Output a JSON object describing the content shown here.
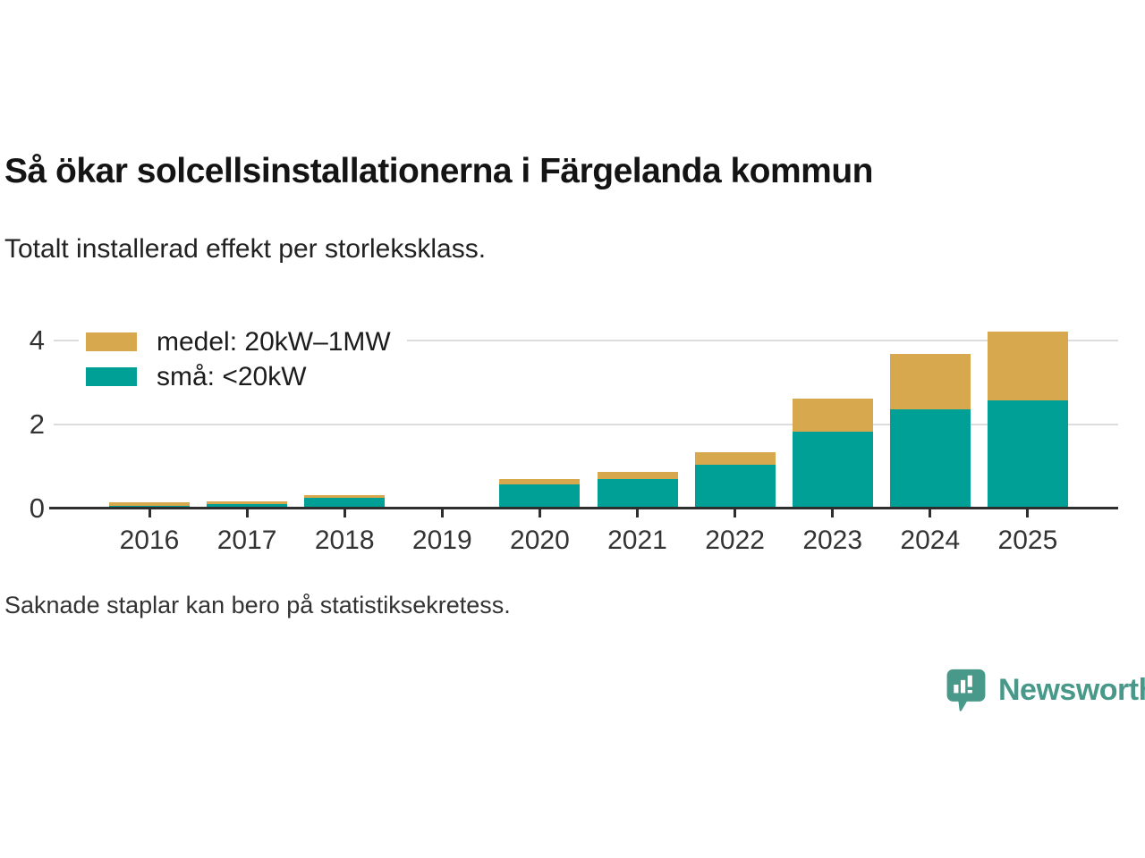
{
  "header": {
    "title": "Så ökar solcellsinstallationerna i Färgelanda kommun",
    "subtitle": "Totalt installerad effekt per storleksklass."
  },
  "chart_data": {
    "type": "bar",
    "stacked": true,
    "title": "Så ökar solcellsinstallationerna i Färgelanda kommun",
    "subtitle": "Totalt installerad effekt per storleksklass.",
    "categories": [
      "2016",
      "2017",
      "2018",
      "2019",
      "2020",
      "2021",
      "2022",
      "2023",
      "2024",
      "2025"
    ],
    "series": [
      {
        "name": "små: <20kW",
        "color": "#00A096",
        "values": [
          0.07,
          0.1,
          0.25,
          null,
          0.57,
          0.71,
          1.04,
          1.84,
          2.36,
          2.58
        ]
      },
      {
        "name": "medel: 20kW–1MW",
        "color": "#D8A84E",
        "values": [
          0.07,
          0.06,
          0.07,
          null,
          0.14,
          0.16,
          0.31,
          0.79,
          1.32,
          1.65
        ]
      }
    ],
    "yticks": [
      0,
      2,
      4
    ],
    "ylim": [
      0,
      4.3
    ],
    "grid": "horizontal",
    "legend_position": "top-left",
    "legend_order": [
      "medel: 20kW–1MW",
      "små: <20kW"
    ]
  },
  "footer": {
    "note": "Saknade staplar kan bero på statistiksekretess."
  },
  "logo": {
    "text": "Newsworthy",
    "color": "#489989"
  }
}
